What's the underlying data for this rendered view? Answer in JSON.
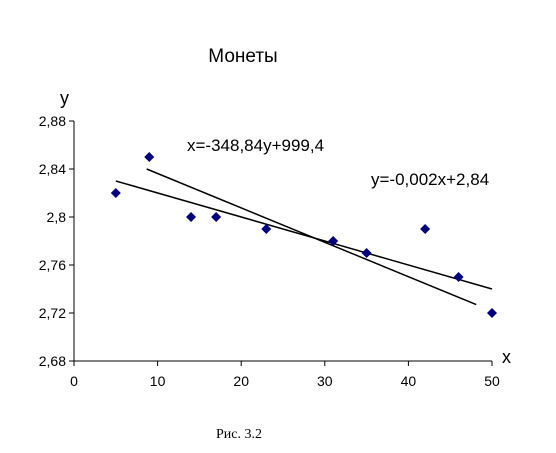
{
  "chart_data": {
    "type": "scatter",
    "title": "Монеты",
    "xlabel": "x",
    "ylabel": "y",
    "xlim": [
      0,
      50
    ],
    "ylim": [
      2.68,
      2.88
    ],
    "xticks": [
      0,
      10,
      20,
      30,
      40,
      50
    ],
    "xtick_labels": [
      "0",
      "10",
      "20",
      "30",
      "40",
      "50"
    ],
    "yticks": [
      2.68,
      2.72,
      2.76,
      2.8,
      2.84,
      2.88
    ],
    "ytick_labels": [
      "2,68",
      "2,72",
      "2,76",
      "2,8",
      "2,84",
      "2,88"
    ],
    "grid": false,
    "legend": "none",
    "marker": "diamond",
    "point_color": "#000080",
    "points": [
      {
        "x": 5,
        "y": 2.82
      },
      {
        "x": 9,
        "y": 2.85
      },
      {
        "x": 14,
        "y": 2.8
      },
      {
        "x": 17,
        "y": 2.8
      },
      {
        "x": 23,
        "y": 2.79
      },
      {
        "x": 31,
        "y": 2.78
      },
      {
        "x": 35,
        "y": 2.77
      },
      {
        "x": 42,
        "y": 2.79
      },
      {
        "x": 46,
        "y": 2.75
      },
      {
        "x": 50,
        "y": 2.72
      }
    ],
    "fit_lines": [
      {
        "equation": "y=-0,002x+2,84",
        "slope": -0.002,
        "intercept": 2.84,
        "x_range": [
          5,
          50
        ]
      },
      {
        "equation": "x=-348,84y+999,4",
        "slope": -348.84,
        "intercept": 999.4,
        "y_range": [
          2.727,
          2.84
        ]
      }
    ]
  },
  "caption": "Рис. 3.2"
}
